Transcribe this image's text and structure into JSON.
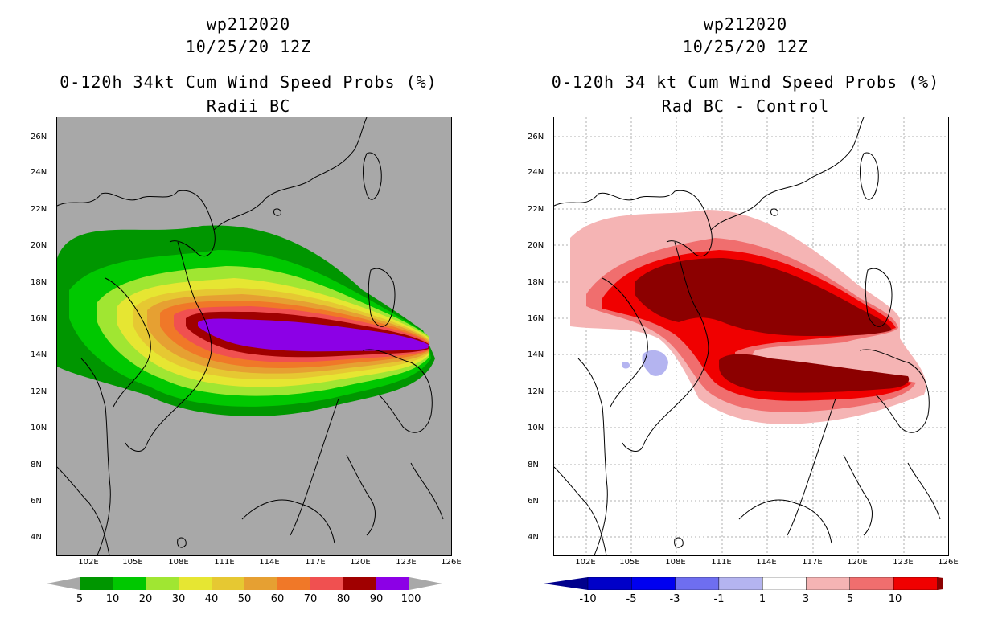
{
  "panels": [
    {
      "title_line1": "wp212020",
      "title_line2": "10/25/20 12Z",
      "title_line3": "0-120h 34kt Cum Wind Speed Probs (%)",
      "title_line4": "Radii BC",
      "background": "#a8a8a8",
      "colorbar": {
        "labels": [
          "5",
          "10",
          "20",
          "30",
          "40",
          "50",
          "60",
          "70",
          "80",
          "90",
          "100"
        ],
        "colors": [
          "#009600",
          "#00c800",
          "#a0e632",
          "#e6e632",
          "#e6c832",
          "#e6a032",
          "#f07828",
          "#f05050",
          "#a00000",
          "#8c00e6"
        ],
        "end_arrow_color": "#a8a8a8"
      }
    },
    {
      "title_line1": "wp212020",
      "title_line2": "10/25/20 12Z",
      "title_line3": "0-120h 34 kt Cum Wind Speed Probs (%)",
      "title_line4": "Rad BC - Control",
      "background": "#ffffff",
      "colorbar": {
        "labels": [
          "-10",
          "-5",
          "-3",
          "-1",
          "1",
          "3",
          "5",
          "10"
        ],
        "colors": [
          "#0000c8",
          "#0000f0",
          "#6e6ef0",
          "#b4b4f0",
          "#ffffff",
          "#f5b4b4",
          "#f06e6e",
          "#f00000"
        ],
        "end_left_color": "#00008c",
        "end_right_color": "#8c0000"
      }
    }
  ],
  "axes": {
    "lat_labels": [
      "26N",
      "24N",
      "22N",
      "20N",
      "18N",
      "16N",
      "14N",
      "12N",
      "10N",
      "8N",
      "6N",
      "4N"
    ],
    "lon_labels": [
      "102E",
      "105E",
      "108E",
      "111E",
      "114E",
      "117E",
      "120E",
      "123E",
      "126E"
    ]
  }
}
